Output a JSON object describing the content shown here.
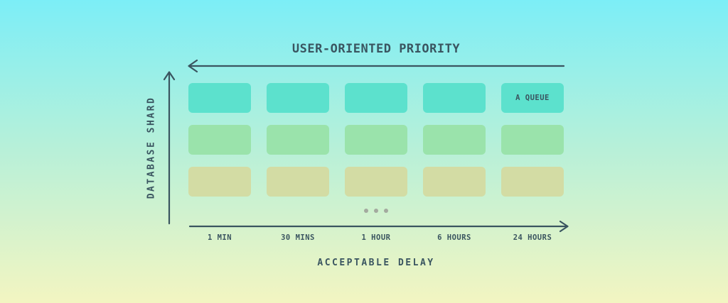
{
  "title": "USER-ORIENTED PRIORITY",
  "y_axis": {
    "label": "DATABASE SHARD"
  },
  "x_axis": {
    "label": "ACCEPTABLE DELAY",
    "ticks": [
      "1 MIN",
      "30 MINS",
      "1 HOUR",
      "6 HOURS",
      "24 HOURS"
    ]
  },
  "grid": {
    "rows": [
      {
        "tier": "top-priority-row",
        "color": "#5ce1cd",
        "cells": [
          "",
          "",
          "",
          "",
          "A QUEUE"
        ]
      },
      {
        "tier": "medium-priority-row",
        "color": "#9ae3ab",
        "cells": [
          "",
          "",
          "",
          "",
          ""
        ]
      },
      {
        "tier": "low-priority-row",
        "color": "#d3dca4",
        "cells": [
          "",
          "",
          "",
          "",
          ""
        ]
      }
    ],
    "ellipsis_dots": 3
  },
  "colors": {
    "ink": "#3a5560",
    "bg_top": "#7ceef7",
    "bg_mid": "#b6f0d9",
    "bg_bottom": "#f3f5c1",
    "dot": "#a4aa9f"
  }
}
